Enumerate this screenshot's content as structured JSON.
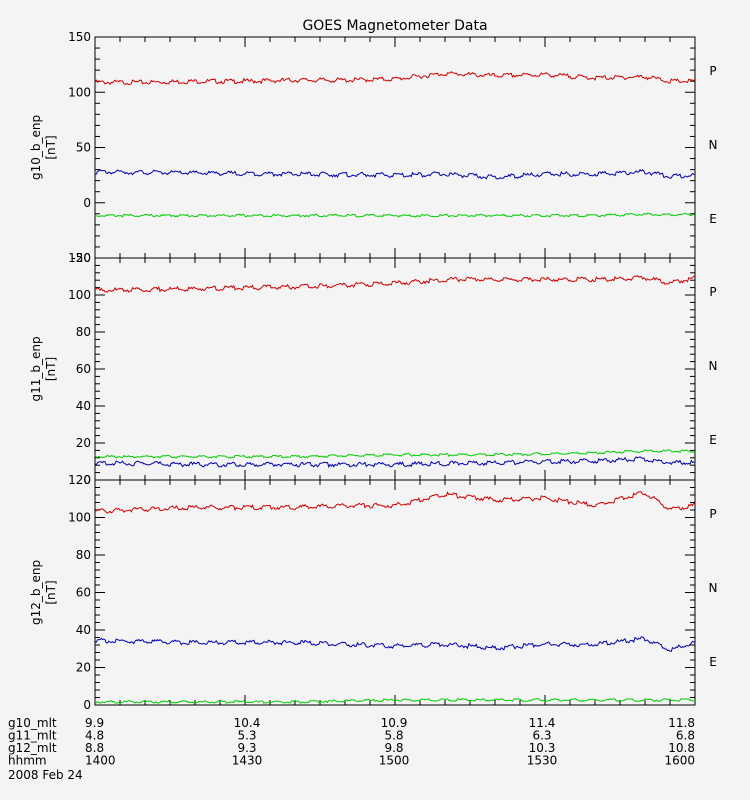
{
  "title": "GOES Magnetometer Data",
  "colors": {
    "P": "#cc0000",
    "N": "#00cc00",
    "E": "#0000aa",
    "axis": "#000000",
    "background": "#f4f4f4"
  },
  "chart_data": [
    {
      "type": "line",
      "ylabel": "g10_b_enp",
      "unit": "[nT]",
      "ylim": [
        -50,
        150
      ],
      "yticks": [
        -50,
        0,
        50,
        100,
        150
      ],
      "xlim": [
        0,
        120
      ],
      "legend": [
        "P",
        "N",
        "E"
      ],
      "series": [
        {
          "name": "P",
          "color": "#cc0000",
          "x": [
            0,
            10,
            20,
            30,
            40,
            50,
            60,
            70,
            80,
            90,
            100,
            110,
            115,
            120
          ],
          "values": [
            110,
            110,
            111,
            111,
            112,
            112,
            113,
            118,
            116,
            117,
            114,
            115,
            111,
            111
          ]
        },
        {
          "name": "N",
          "color": "#00cc00",
          "x": [
            0,
            20,
            40,
            60,
            80,
            100,
            110,
            120
          ],
          "values": [
            -11,
            -11,
            -11,
            -11,
            -11,
            -11,
            -10,
            -10
          ]
        },
        {
          "name": "E",
          "color": "#0000aa",
          "x": [
            0,
            20,
            40,
            60,
            70,
            80,
            90,
            100,
            110,
            115,
            120
          ],
          "values": [
            29,
            28,
            27,
            26,
            27,
            24,
            27,
            27,
            29,
            25,
            26
          ]
        }
      ]
    },
    {
      "type": "line",
      "ylabel": "g11_b_enp",
      "unit": "[nT]",
      "ylim": [
        0,
        120
      ],
      "yticks": [
        0,
        20,
        40,
        60,
        80,
        100,
        120
      ],
      "xlim": [
        0,
        120
      ],
      "legend": [
        "P",
        "N",
        "E"
      ],
      "series": [
        {
          "name": "P",
          "color": "#cc0000",
          "x": [
            0,
            20,
            40,
            60,
            70,
            80,
            90,
            100,
            110,
            115,
            120
          ],
          "values": [
            103,
            104,
            105,
            107,
            109,
            109,
            109,
            109,
            110,
            107,
            110
          ]
        },
        {
          "name": "N",
          "color": "#00cc00",
          "x": [
            0,
            20,
            40,
            60,
            80,
            100,
            110,
            120
          ],
          "values": [
            13,
            13,
            13,
            14,
            14,
            15,
            16,
            16
          ]
        },
        {
          "name": "E",
          "color": "#0000aa",
          "x": [
            0,
            20,
            40,
            60,
            80,
            100,
            110,
            115,
            120
          ],
          "values": [
            10,
            9,
            9,
            9,
            10,
            11,
            12,
            10,
            10
          ]
        }
      ]
    },
    {
      "type": "line",
      "ylabel": "g12_b_enp",
      "unit": "[nT]",
      "ylim": [
        0,
        120
      ],
      "yticks": [
        0,
        20,
        40,
        60,
        80,
        100,
        120
      ],
      "xlim": [
        0,
        120
      ],
      "legend": [
        "P",
        "N",
        "E"
      ],
      "series": [
        {
          "name": "P",
          "color": "#cc0000",
          "x": [
            0,
            10,
            20,
            30,
            40,
            50,
            60,
            70,
            80,
            90,
            100,
            110,
            115,
            120
          ],
          "values": [
            104,
            105,
            106,
            106,
            106,
            107,
            107,
            113,
            110,
            111,
            107,
            114,
            105,
            107
          ]
        },
        {
          "name": "N",
          "color": "#00cc00",
          "x": [
            0,
            20,
            40,
            60,
            80,
            100,
            110,
            120
          ],
          "values": [
            2,
            2,
            2,
            3,
            3,
            3,
            3,
            3
          ]
        },
        {
          "name": "E",
          "color": "#0000aa",
          "x": [
            0,
            20,
            40,
            60,
            70,
            80,
            90,
            100,
            110,
            115,
            120
          ],
          "values": [
            35,
            34,
            34,
            32,
            33,
            31,
            33,
            33,
            36,
            30,
            34
          ]
        }
      ]
    }
  ],
  "footer": {
    "date": "2008 Feb 24",
    "rows": [
      {
        "label": "g10_mlt",
        "values": [
          "9.9",
          "10.4",
          "10.9",
          "11.4",
          "11.8"
        ]
      },
      {
        "label": "g11_mlt",
        "values": [
          "4.8",
          "5.3",
          "5.8",
          "6.3",
          "6.8"
        ]
      },
      {
        "label": "g12_mlt",
        "values": [
          "8.8",
          "9.3",
          "9.8",
          "10.3",
          "10.8"
        ]
      },
      {
        "label": "hhmm",
        "values": [
          "1400",
          "1430",
          "1500",
          "1530",
          "1600"
        ]
      }
    ]
  }
}
